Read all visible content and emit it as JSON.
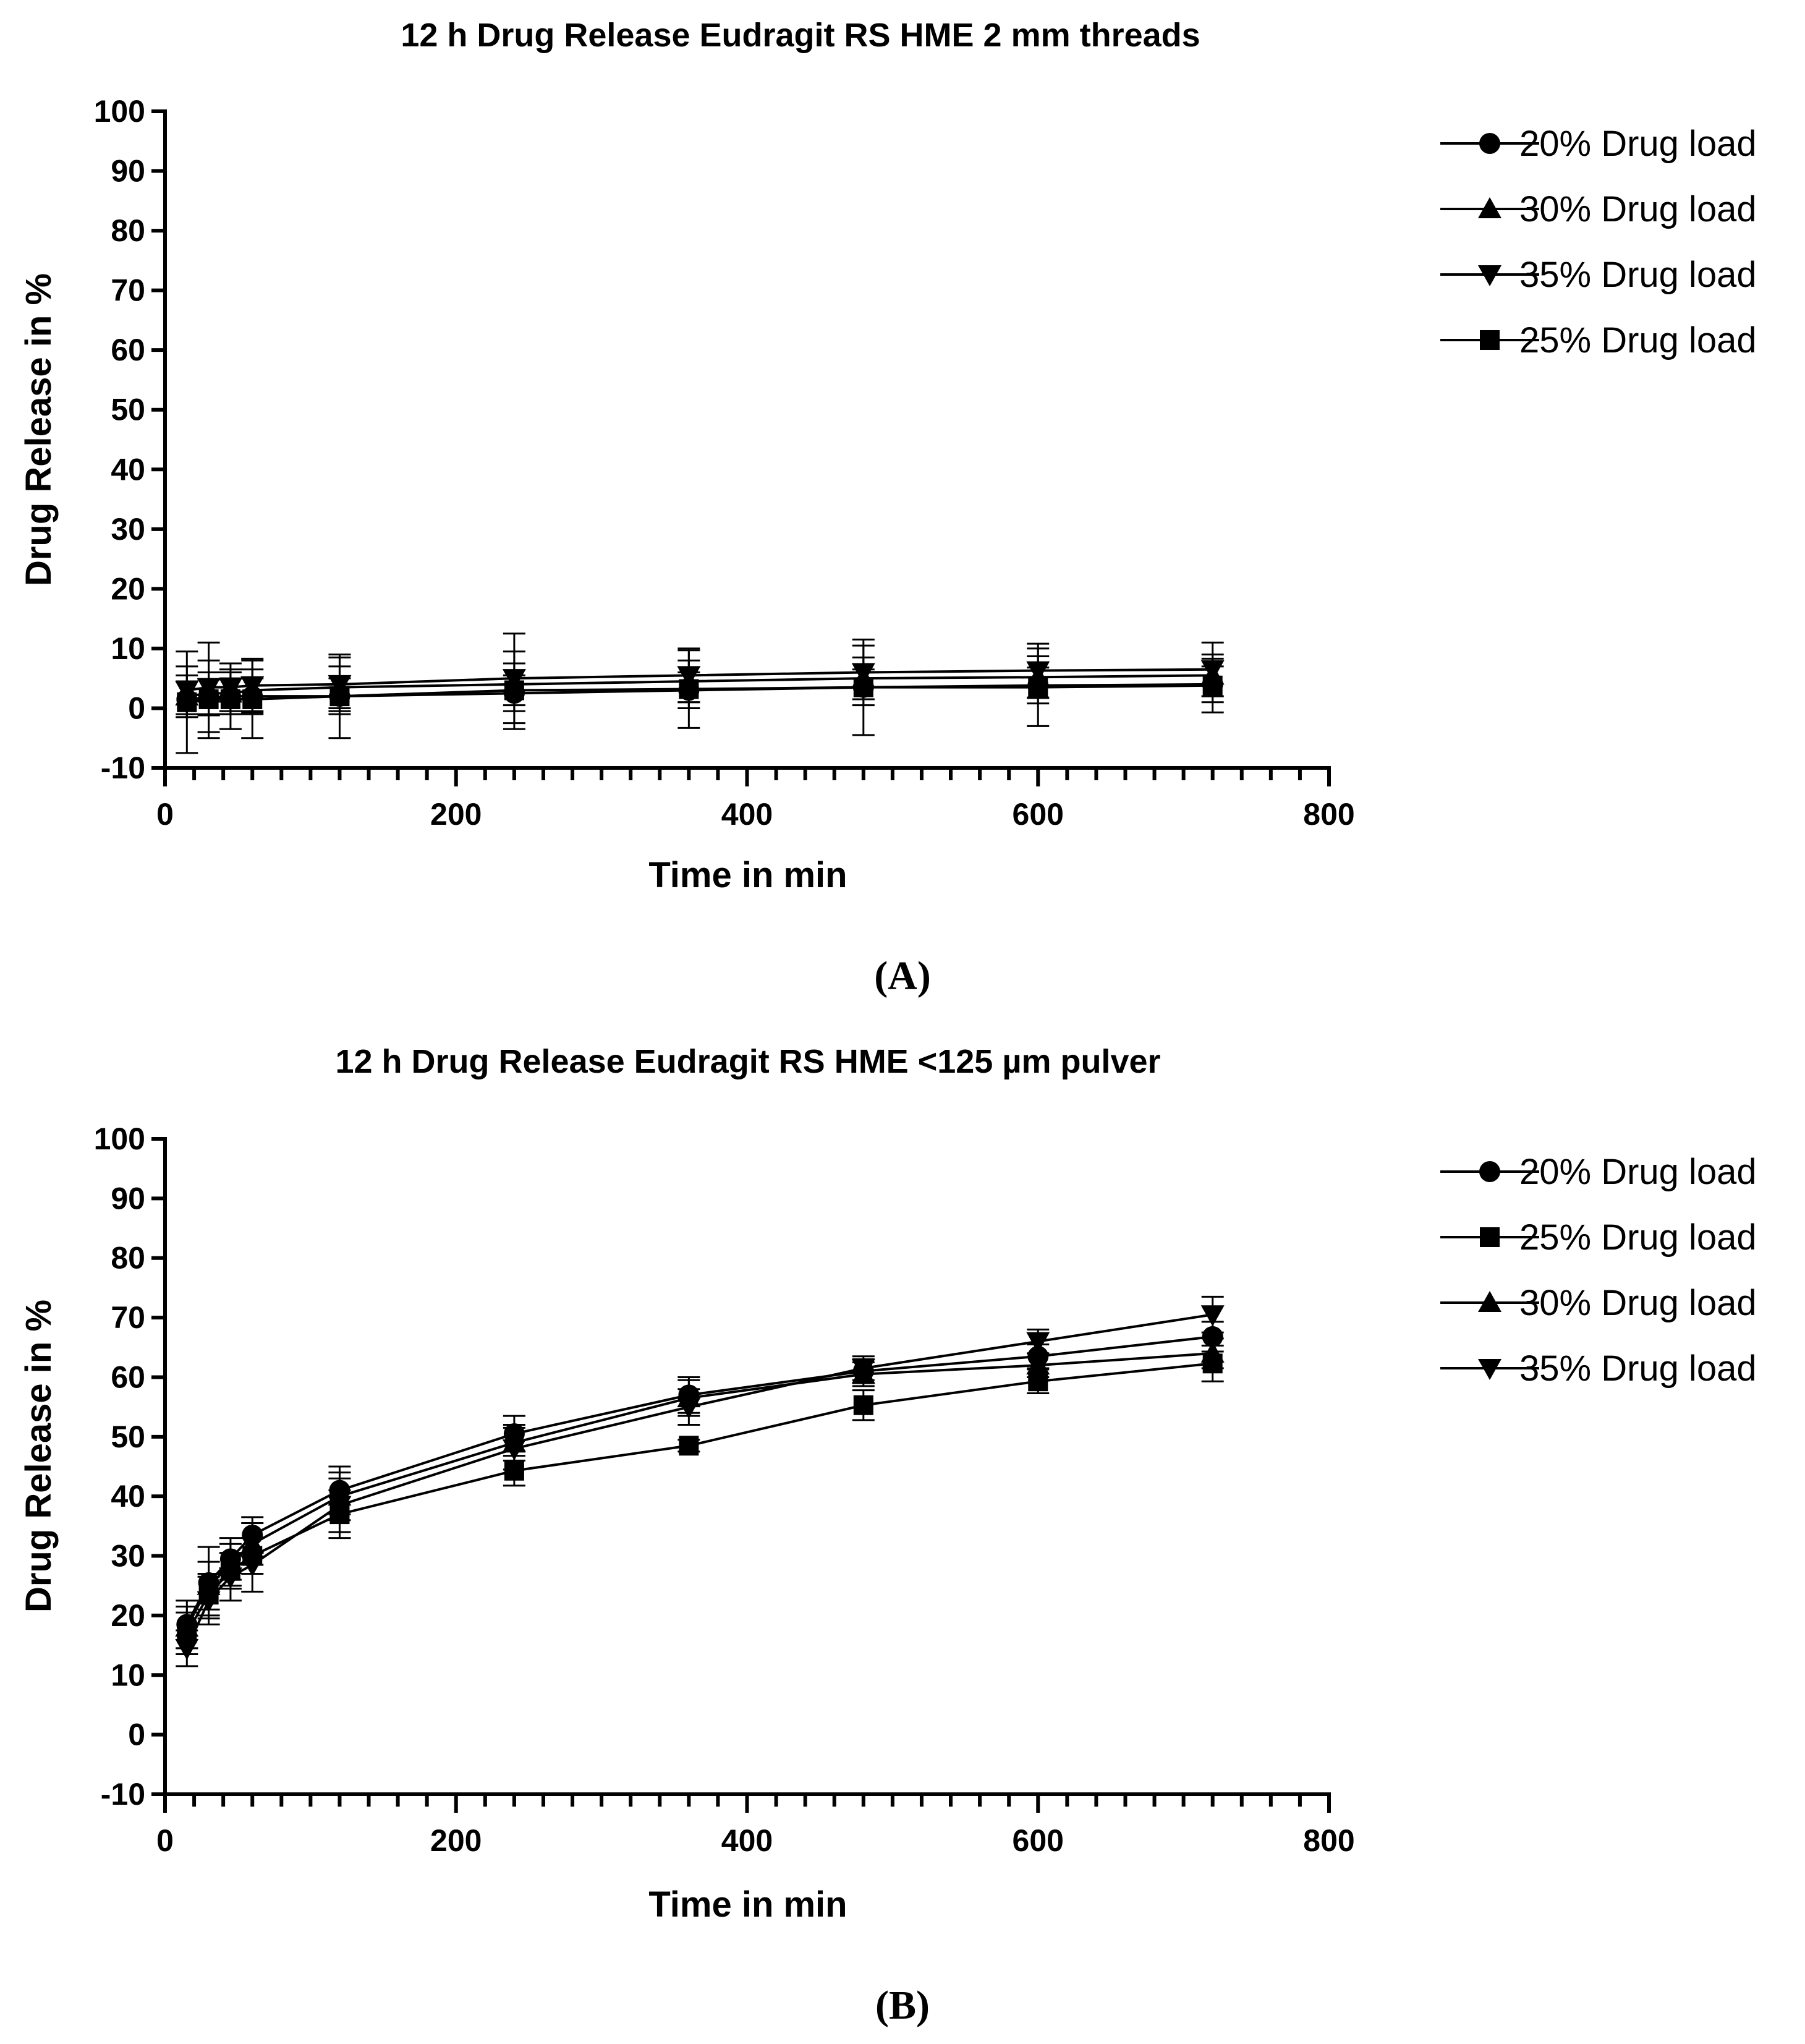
{
  "chart_data": [
    {
      "type": "line",
      "panel_label": "(A)",
      "title": "12 h Drug Release Eudragit RS HME 2 mm threads",
      "xlabel": "Time in min",
      "ylabel": "Drug Release in %",
      "xlim": [
        0,
        800
      ],
      "ylim": [
        -10,
        100
      ],
      "x_ticks": [
        "0",
        "200",
        "400",
        "600",
        "800"
      ],
      "y_ticks": [
        "-10",
        "0",
        "10",
        "20",
        "30",
        "40",
        "50",
        "60",
        "70",
        "80",
        "90",
        "100"
      ],
      "legend_position": "right",
      "x": [
        15,
        30,
        45,
        60,
        120,
        240,
        360,
        480,
        600,
        720
      ],
      "series": [
        {
          "name": "20% Drug load",
          "marker": "circle",
          "values": [
            1.5,
            1.8,
            2.0,
            2.0,
            2.0,
            2.5,
            3.0,
            3.5,
            3.8,
            4.0
          ],
          "errors": [
            3.0,
            3.0,
            3.0,
            3.0,
            3.0,
            3.0,
            3.0,
            3.0,
            3.0,
            3.0
          ]
        },
        {
          "name": "30% Drug load",
          "marker": "triangle-up",
          "values": [
            2.0,
            2.5,
            2.5,
            3.0,
            3.5,
            4.0,
            4.5,
            5.0,
            5.2,
            5.5
          ],
          "errors": [
            3.5,
            3.5,
            3.5,
            3.5,
            3.5,
            3.5,
            3.5,
            3.5,
            3.5,
            3.5
          ]
        },
        {
          "name": "35% Drug load",
          "marker": "triangle-down",
          "values": [
            3.0,
            3.5,
            3.5,
            3.8,
            4.0,
            5.0,
            5.5,
            6.0,
            6.3,
            6.5
          ],
          "errors": [
            4.0,
            7.5,
            4.0,
            4.5,
            4.5,
            7.5,
            4.5,
            4.5,
            4.5,
            4.5
          ]
        },
        {
          "name": "25% Drug load",
          "marker": "square",
          "values": [
            1.0,
            1.5,
            1.5,
            1.5,
            2.0,
            3.0,
            3.2,
            3.5,
            3.5,
            3.8
          ],
          "errors": [
            8.5,
            6.5,
            5.0,
            6.5,
            7.0,
            6.5,
            6.5,
            8.0,
            6.5,
            4.5
          ]
        }
      ]
    },
    {
      "type": "line",
      "panel_label": "(B)",
      "title": "12 h Drug Release Eudragit RS HME <125 µm pulver",
      "xlabel": "Time in min",
      "ylabel": "Drug Release in %",
      "xlim": [
        0,
        800
      ],
      "ylim": [
        -10,
        100
      ],
      "x_ticks": [
        "0",
        "200",
        "400",
        "600",
        "800"
      ],
      "y_ticks": [
        "-10",
        "0",
        "10",
        "20",
        "30",
        "40",
        "50",
        "60",
        "70",
        "80",
        "90",
        "100"
      ],
      "legend_position": "right",
      "x": [
        15,
        30,
        45,
        60,
        120,
        240,
        360,
        480,
        600,
        720
      ],
      "series": [
        {
          "name": "20% Drug load",
          "marker": "circle",
          "values": [
            18.5,
            25.5,
            29.5,
            33.5,
            41.0,
            50.5,
            57.0,
            61.0,
            63.5,
            66.8
          ],
          "errors": [
            4.0,
            6.0,
            3.5,
            3.0,
            4.0,
            3.0,
            3.0,
            2.0,
            2.0,
            2.5
          ]
        },
        {
          "name": "25% Drug load",
          "marker": "square",
          "values": [
            17.0,
            23.5,
            27.5,
            30.0,
            37.0,
            44.3,
            48.5,
            55.3,
            59.3,
            62.3
          ],
          "errors": [
            3.5,
            3.5,
            3.0,
            3.0,
            4.0,
            2.5,
            1.0,
            2.5,
            2.0,
            3.0
          ]
        },
        {
          "name": "30% Drug load",
          "marker": "triangle-up",
          "values": [
            18.0,
            25.0,
            28.5,
            32.0,
            40.0,
            49.0,
            56.5,
            60.5,
            62.0,
            64.0
          ],
          "errors": [
            3.5,
            4.0,
            3.5,
            3.5,
            4.0,
            3.0,
            3.0,
            2.0,
            2.0,
            2.5
          ]
        },
        {
          "name": "35% Drug load",
          "marker": "triangle-down",
          "values": [
            14.5,
            22.5,
            26.5,
            28.5,
            38.5,
            48.0,
            55.0,
            61.5,
            66.0,
            70.5
          ],
          "errors": [
            3.0,
            4.0,
            4.0,
            4.5,
            4.5,
            3.5,
            3.0,
            2.0,
            2.0,
            3.0
          ]
        }
      ]
    }
  ]
}
